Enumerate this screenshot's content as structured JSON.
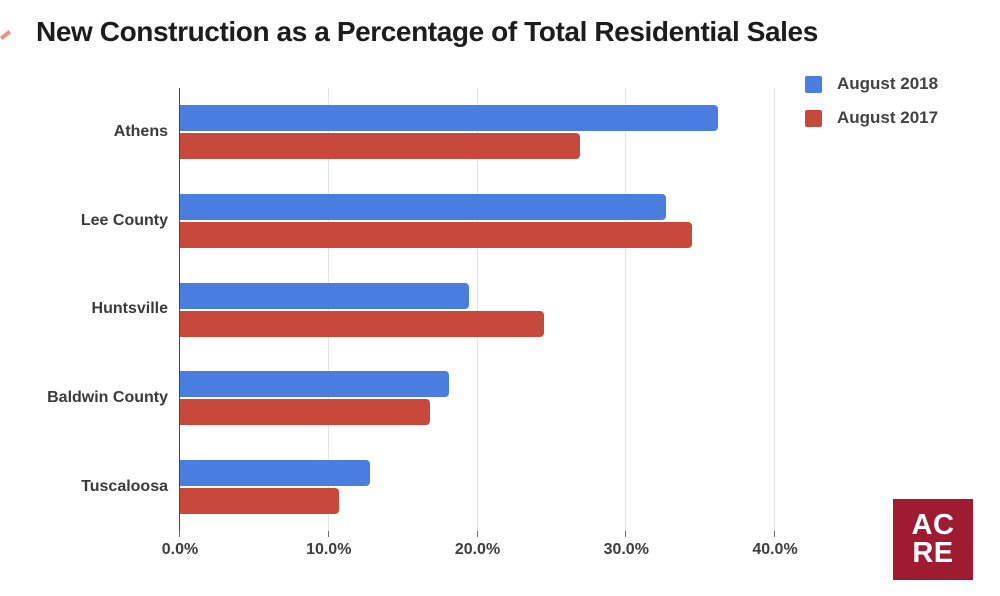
{
  "title": "New Construction as a Percentage of Total Residential Sales",
  "colors": {
    "series_2018": "#4a7de0",
    "series_2017": "#c8493c",
    "logo_background": "#9e1b32",
    "grid_line": "#e2e2e2",
    "axis_line": "#4a4a4a"
  },
  "legend": {
    "position": "top-right",
    "items": [
      {
        "label": "August 2018",
        "color": "#4a7de0"
      },
      {
        "label": "August 2017",
        "color": "#c8493c"
      }
    ]
  },
  "chart_data": {
    "type": "bar",
    "orientation": "horizontal",
    "title": "New Construction as a Percentage of Total Residential Sales",
    "categories": [
      "Athens",
      "Lee County",
      "Huntsville",
      "Baldwin County",
      "Tuscaloosa"
    ],
    "series": [
      {
        "name": "August 2018",
        "color": "#4a7de0",
        "values": [
          36.2,
          32.7,
          19.4,
          18.1,
          12.8
        ]
      },
      {
        "name": "August 2017",
        "color": "#c8493c",
        "values": [
          26.9,
          34.4,
          24.5,
          16.8,
          10.7
        ]
      }
    ],
    "xlabel": "",
    "ylabel": "",
    "xlim": [
      0,
      40
    ],
    "x_tick_values": [
      0,
      10,
      20,
      30,
      40
    ],
    "x_tick_labels": [
      "0.0%",
      "10.0%",
      "20.0%",
      "30.0%",
      "40.0%"
    ],
    "grid": true,
    "legend_position": "top-right",
    "value_unit": "%"
  },
  "logo": {
    "line1": "AC",
    "line2": "RE"
  }
}
